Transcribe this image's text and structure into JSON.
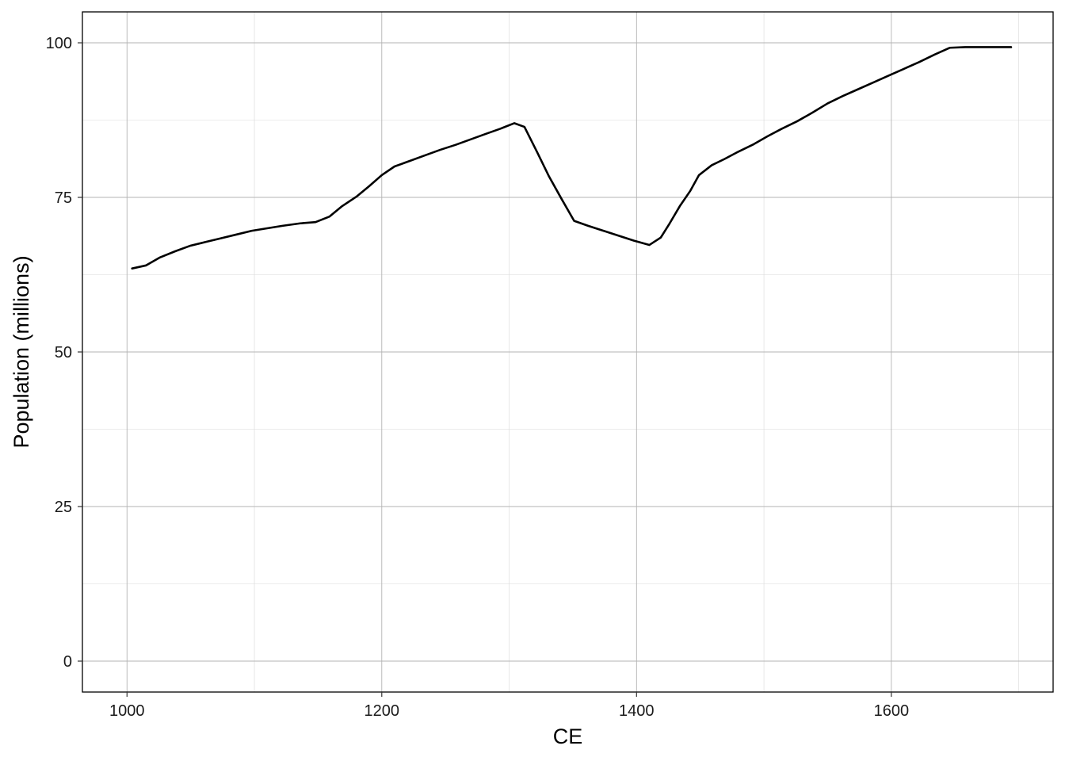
{
  "chart_data": {
    "type": "line",
    "title": "",
    "xlabel": "CE",
    "ylabel": "Population (millions)",
    "xlim": [
      965,
      1727
    ],
    "ylim": [
      -5,
      105
    ],
    "x_ticks": [
      1000,
      1200,
      1400,
      1600
    ],
    "x_minor_ticks": [
      1100,
      1300,
      1500,
      1700
    ],
    "y_ticks": [
      0,
      25,
      50,
      75,
      100
    ],
    "y_minor_ticks": [
      12.5,
      37.5,
      62.5,
      87.5
    ],
    "x_tick_labels": [
      "1000",
      "1200",
      "1400",
      "1600"
    ],
    "y_tick_labels": [
      "0",
      "25",
      "50",
      "75",
      "100"
    ],
    "grid": true,
    "legend": "none",
    "series": [
      {
        "color": "#000000",
        "x": [
          1004,
          1015,
          1026,
          1038,
          1050,
          1062,
          1074,
          1086,
          1098,
          1110,
          1122,
          1136,
          1148,
          1159,
          1169,
          1180,
          1190,
          1200,
          1210,
          1222,
          1234,
          1246,
          1258,
          1270,
          1282,
          1293,
          1304,
          1312,
          1322,
          1331,
          1341,
          1351,
          1362,
          1374,
          1386,
          1398,
          1410,
          1419,
          1426,
          1434,
          1442,
          1449,
          1459,
          1469,
          1480,
          1492,
          1503,
          1514,
          1526,
          1538,
          1550,
          1562,
          1574,
          1586,
          1598,
          1610,
          1622,
          1634,
          1646,
          1658,
          1670,
          1682,
          1694
        ],
        "y": [
          63.5,
          64.0,
          65.3,
          66.3,
          67.2,
          67.8,
          68.4,
          69.0,
          69.6,
          70.0,
          70.4,
          70.8,
          71.0,
          71.9,
          73.6,
          75.1,
          76.8,
          78.6,
          80.0,
          80.9,
          81.8,
          82.7,
          83.5,
          84.4,
          85.3,
          86.1,
          87.0,
          86.4,
          82.3,
          78.5,
          74.8,
          71.2,
          70.4,
          69.6,
          68.8,
          68.0,
          67.3,
          68.5,
          70.8,
          73.6,
          76.0,
          78.6,
          80.2,
          81.2,
          82.4,
          83.6,
          84.9,
          86.1,
          87.3,
          88.7,
          90.2,
          91.4,
          92.5,
          93.6,
          94.7,
          95.8,
          96.9,
          98.1,
          99.2,
          99.3,
          99.3,
          99.3,
          99.3
        ]
      }
    ]
  }
}
